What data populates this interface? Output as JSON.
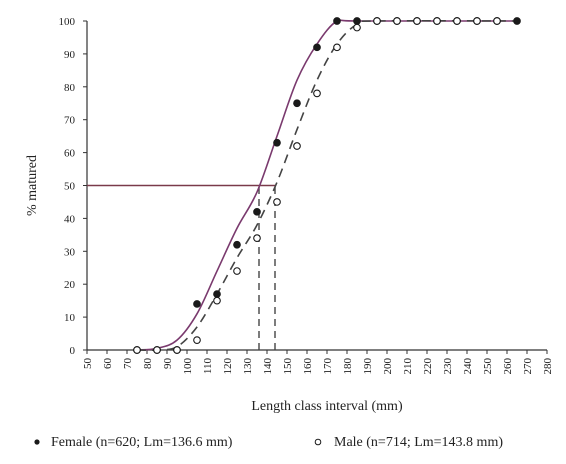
{
  "chart_data": {
    "type": "scatter",
    "xlabel": "Length class interval (mm)",
    "ylabel": "% matured",
    "xlim": [
      50,
      280
    ],
    "ylim": [
      0,
      100
    ],
    "x_ticks": [
      50,
      60,
      70,
      80,
      90,
      100,
      110,
      120,
      130,
      140,
      150,
      160,
      170,
      180,
      190,
      200,
      210,
      220,
      230,
      240,
      250,
      260,
      270,
      280
    ],
    "y_ticks": [
      0,
      10,
      20,
      30,
      40,
      50,
      60,
      70,
      80,
      90,
      100
    ],
    "grid": false,
    "legend_position": "bottom",
    "series": [
      {
        "name": "Female (n=620; Lm=136.6 mm)",
        "marker": "filled-circle",
        "color": "#1a1a1a",
        "points": [
          [
            75,
            0
          ],
          [
            85,
            0
          ],
          [
            95,
            0
          ],
          [
            105,
            14
          ],
          [
            115,
            17
          ],
          [
            125,
            32
          ],
          [
            135,
            42
          ],
          [
            145,
            63
          ],
          [
            155,
            75
          ],
          [
            165,
            92
          ],
          [
            175,
            100
          ],
          [
            185,
            100
          ],
          [
            195,
            100
          ],
          [
            205,
            100
          ],
          [
            215,
            100
          ],
          [
            225,
            100
          ],
          [
            235,
            100
          ],
          [
            245,
            100
          ],
          [
            255,
            100
          ],
          [
            265,
            100
          ]
        ],
        "fit": [
          [
            75,
            0
          ],
          [
            85,
            0.5
          ],
          [
            95,
            3
          ],
          [
            105,
            11
          ],
          [
            115,
            24
          ],
          [
            125,
            37
          ],
          [
            135,
            48
          ],
          [
            145,
            65
          ],
          [
            155,
            82
          ],
          [
            165,
            93
          ],
          [
            175,
            100
          ],
          [
            185,
            100
          ],
          [
            265,
            100
          ]
        ],
        "fit_style": "solid",
        "fit_color": "#7a3a6e",
        "lm": 136.6
      },
      {
        "name": "Male (n=714; Lm=143.8 mm)",
        "marker": "open-circle",
        "color": "#1a1a1a",
        "points": [
          [
            75,
            0
          ],
          [
            85,
            0
          ],
          [
            95,
            0
          ],
          [
            105,
            3
          ],
          [
            115,
            15
          ],
          [
            125,
            24
          ],
          [
            135,
            34
          ],
          [
            145,
            45
          ],
          [
            155,
            62
          ],
          [
            165,
            78
          ],
          [
            175,
            92
          ],
          [
            185,
            98
          ],
          [
            195,
            100
          ],
          [
            205,
            100
          ],
          [
            215,
            100
          ],
          [
            225,
            100
          ],
          [
            235,
            100
          ],
          [
            245,
            100
          ],
          [
            255,
            100
          ]
        ],
        "fit": [
          [
            75,
            0
          ],
          [
            85,
            0
          ],
          [
            95,
            1
          ],
          [
            105,
            7
          ],
          [
            115,
            17
          ],
          [
            125,
            28
          ],
          [
            135,
            38
          ],
          [
            145,
            51
          ],
          [
            155,
            67
          ],
          [
            165,
            82
          ],
          [
            175,
            93
          ],
          [
            185,
            99
          ],
          [
            195,
            100
          ],
          [
            265,
            100
          ]
        ],
        "fit_style": "dashed",
        "fit_color": "#444444",
        "lm": 143.8
      }
    ],
    "reference_lines": [
      {
        "type": "horizontal",
        "y": 50,
        "x_from": 50,
        "x_to": 144,
        "color": "#7a3a4a"
      },
      {
        "type": "vertical",
        "x": 136,
        "y_from": 0,
        "y_to": 50,
        "style": "dashed"
      },
      {
        "type": "vertical",
        "x": 144,
        "y_from": 0,
        "y_to": 50,
        "style": "dashed"
      }
    ]
  }
}
